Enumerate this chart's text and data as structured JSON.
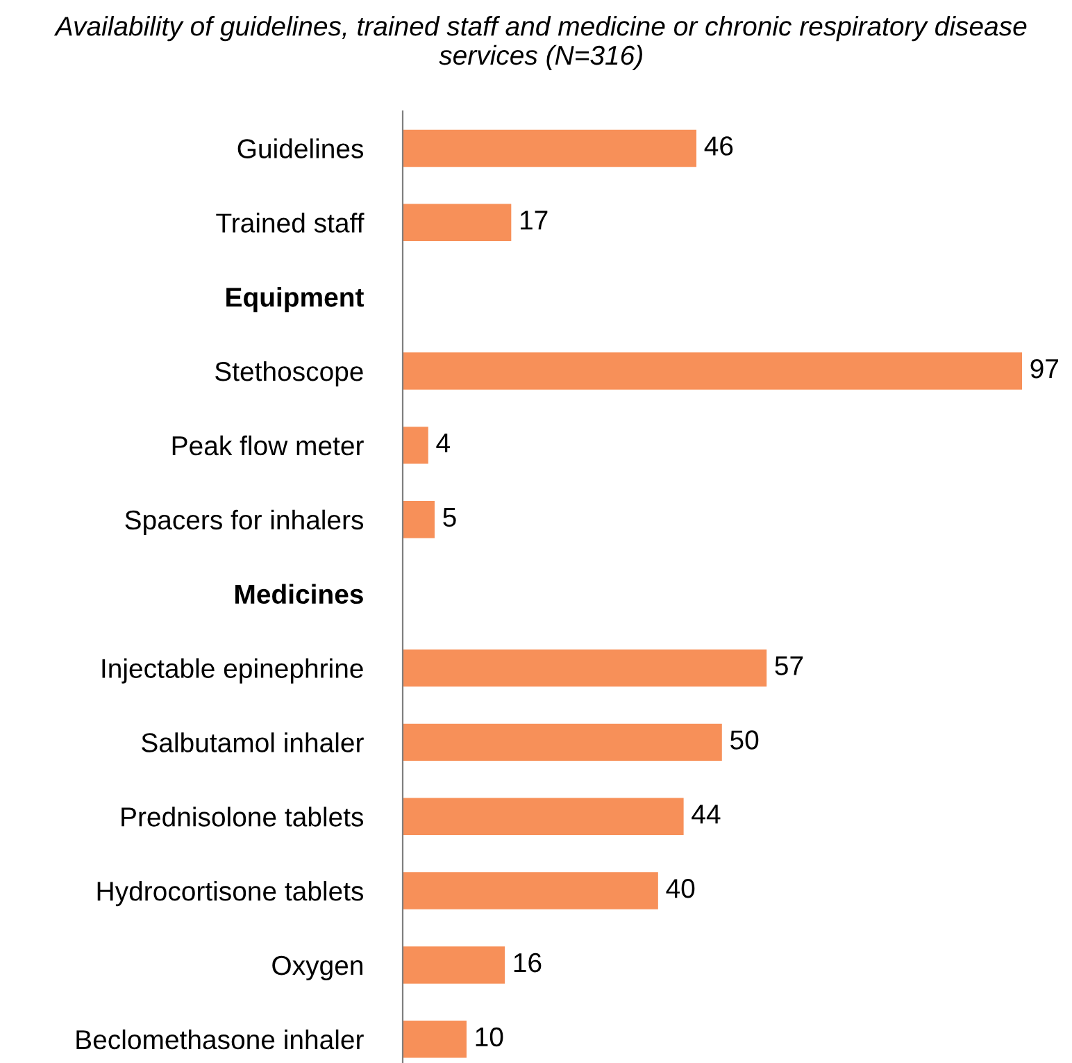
{
  "chart_data": {
    "type": "bar",
    "orientation": "horizontal",
    "title": "Availability of guidelines, trained staff and medicine or chronic respiratory disease services (N=316)",
    "categories": [
      "Guidelines",
      "Trained staff",
      "Equipment",
      "Stethoscope",
      "Peak flow meter",
      "Spacers for inhalers",
      "Medicines",
      "Injectable epinephrine",
      "Salbutamol inhaler",
      "Prednisolone tablets",
      "Hydrocortisone tablets",
      "Oxygen",
      "Beclomethasone inhaler"
    ],
    "values": [
      46,
      17,
      null,
      97,
      4,
      5,
      null,
      57,
      50,
      44,
      40,
      16,
      10
    ],
    "color": "#f79059",
    "data_labels": true,
    "grid": false,
    "legend": false
  }
}
